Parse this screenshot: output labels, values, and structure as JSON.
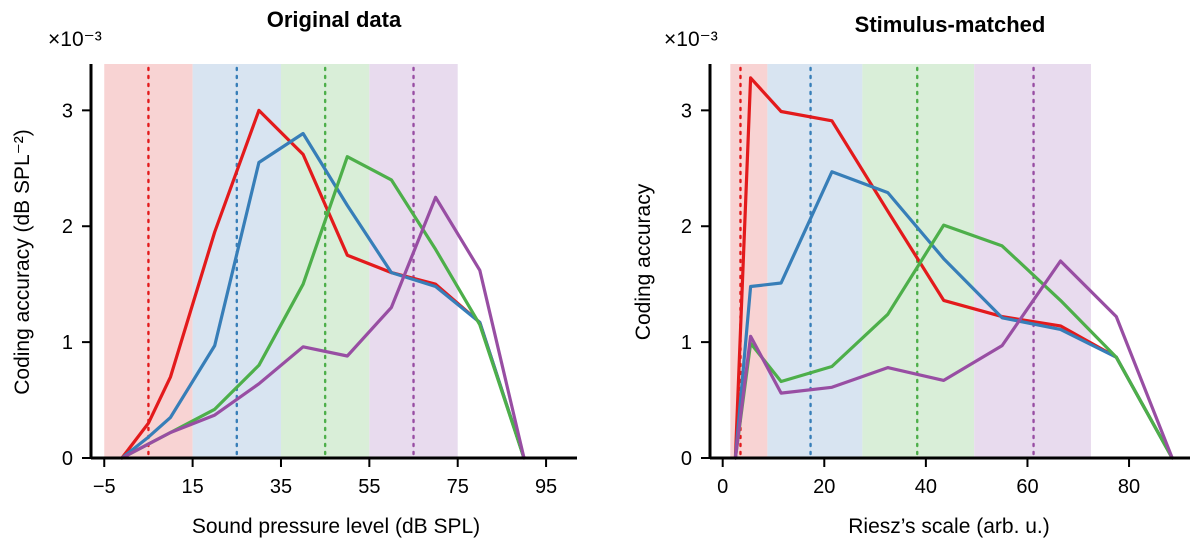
{
  "colors": {
    "red": "#e31a1c",
    "blue": "#377eb8",
    "green": "#4daf4a",
    "purple": "#984ea3",
    "band_red": "#f8d3d3",
    "band_blue": "#d8e4f1",
    "band_green": "#d9eed8",
    "band_purple": "#e8dbee"
  },
  "chart_data": [
    {
      "type": "line",
      "title": "Original data",
      "xlabel": "Sound pressure level (dB SPL)",
      "ylabel": "Coding accuracy (dB SPL⁻²)",
      "y_multiplier": "×10⁻³",
      "xlim": [
        -8,
        102
      ],
      "ylim": [
        0,
        3.4
      ],
      "xticks": [
        -5,
        15,
        35,
        55,
        75,
        95
      ],
      "xtick_labels": [
        "−5",
        "15",
        "35",
        "55",
        "75",
        "95"
      ],
      "yticks": [
        0,
        1,
        2,
        3
      ],
      "ytick_labels": [
        "0",
        "1",
        "2",
        "3"
      ],
      "bands": [
        {
          "x0": -5,
          "x1": 15,
          "color": "band_red",
          "marker": 5,
          "marker_color": "red"
        },
        {
          "x0": 15,
          "x1": 35,
          "color": "band_blue",
          "marker": 25,
          "marker_color": "blue"
        },
        {
          "x0": 35,
          "x1": 55,
          "color": "band_green",
          "marker": 45,
          "marker_color": "green"
        },
        {
          "x0": 55,
          "x1": 75,
          "color": "band_purple",
          "marker": 65,
          "marker_color": "purple"
        }
      ],
      "series": [
        {
          "color": "red",
          "x": [
            -1,
            5,
            10,
            20,
            30,
            40,
            50,
            60,
            70,
            80,
            90
          ],
          "y": [
            0.0,
            0.3,
            0.7,
            1.95,
            3.0,
            2.62,
            1.75,
            1.6,
            1.5,
            1.17,
            0.0
          ]
        },
        {
          "color": "blue",
          "x": [
            -1,
            5,
            10,
            20,
            30,
            40,
            50,
            60,
            70,
            80,
            90
          ],
          "y": [
            0.0,
            0.18,
            0.35,
            0.97,
            2.55,
            2.8,
            2.18,
            1.6,
            1.48,
            1.17,
            0.0
          ]
        },
        {
          "color": "green",
          "x": [
            -1,
            5,
            10,
            20,
            30,
            40,
            50,
            60,
            70,
            80,
            90
          ],
          "y": [
            0.0,
            0.12,
            0.22,
            0.42,
            0.8,
            1.5,
            2.6,
            2.4,
            1.8,
            1.15,
            0.0
          ]
        },
        {
          "color": "purple",
          "x": [
            -1,
            5,
            10,
            20,
            30,
            40,
            50,
            60,
            70,
            80,
            90
          ],
          "y": [
            0.0,
            0.12,
            0.22,
            0.37,
            0.64,
            0.96,
            0.88,
            1.3,
            2.25,
            1.62,
            0.0
          ]
        }
      ]
    },
    {
      "type": "line",
      "title": "Stimulus-matched",
      "xlabel": "Riesz’s scale (arb. u.)",
      "ylabel": "Coding accuracy",
      "y_multiplier": "×10⁻³",
      "xlim": [
        -2.5,
        92
      ],
      "ylim": [
        0,
        3.4
      ],
      "xticks": [
        0,
        20,
        40,
        60,
        80
      ],
      "xtick_labels": [
        "0",
        "20",
        "40",
        "60",
        "80"
      ],
      "yticks": [
        0,
        1,
        2,
        3
      ],
      "ytick_labels": [
        "0",
        "1",
        "2",
        "3"
      ],
      "bands": [
        {
          "x0": 1.5,
          "x1": 8.8,
          "color": "band_red",
          "marker": 3.5,
          "marker_color": "red"
        },
        {
          "x0": 8.8,
          "x1": 27.5,
          "color": "band_blue",
          "marker": 17.3,
          "marker_color": "blue"
        },
        {
          "x0": 27.5,
          "x1": 49.5,
          "color": "band_green",
          "marker": 38.3,
          "marker_color": "green"
        },
        {
          "x0": 49.5,
          "x1": 72.5,
          "color": "band_purple",
          "marker": 61.2,
          "marker_color": "purple"
        }
      ],
      "series": [
        {
          "color": "red",
          "x": [
            2.5,
            5.5,
            11.5,
            21.5,
            32.5,
            43.5,
            55.0,
            66.5,
            77.5,
            88.5
          ],
          "y": [
            0.0,
            3.28,
            2.99,
            2.91,
            2.13,
            1.36,
            1.22,
            1.14,
            0.87,
            0.0
          ]
        },
        {
          "color": "blue",
          "x": [
            2.5,
            5.5,
            11.5,
            21.5,
            32.5,
            43.5,
            55.0,
            66.5,
            77.5,
            88.5
          ],
          "y": [
            0.0,
            1.48,
            1.51,
            2.47,
            2.29,
            1.72,
            1.21,
            1.11,
            0.87,
            0.0
          ]
        },
        {
          "color": "green",
          "x": [
            2.5,
            5.5,
            11.5,
            21.5,
            32.5,
            43.5,
            55.0,
            66.5,
            77.5,
            88.5
          ],
          "y": [
            0.0,
            0.99,
            0.66,
            0.79,
            1.24,
            2.01,
            1.83,
            1.36,
            0.87,
            0.0
          ]
        },
        {
          "color": "purple",
          "x": [
            2.5,
            5.5,
            11.5,
            21.5,
            32.5,
            43.5,
            55.0,
            66.5,
            77.5,
            88.5
          ],
          "y": [
            0.0,
            1.05,
            0.56,
            0.61,
            0.78,
            0.67,
            0.97,
            1.7,
            1.22,
            0.0
          ]
        }
      ]
    }
  ]
}
